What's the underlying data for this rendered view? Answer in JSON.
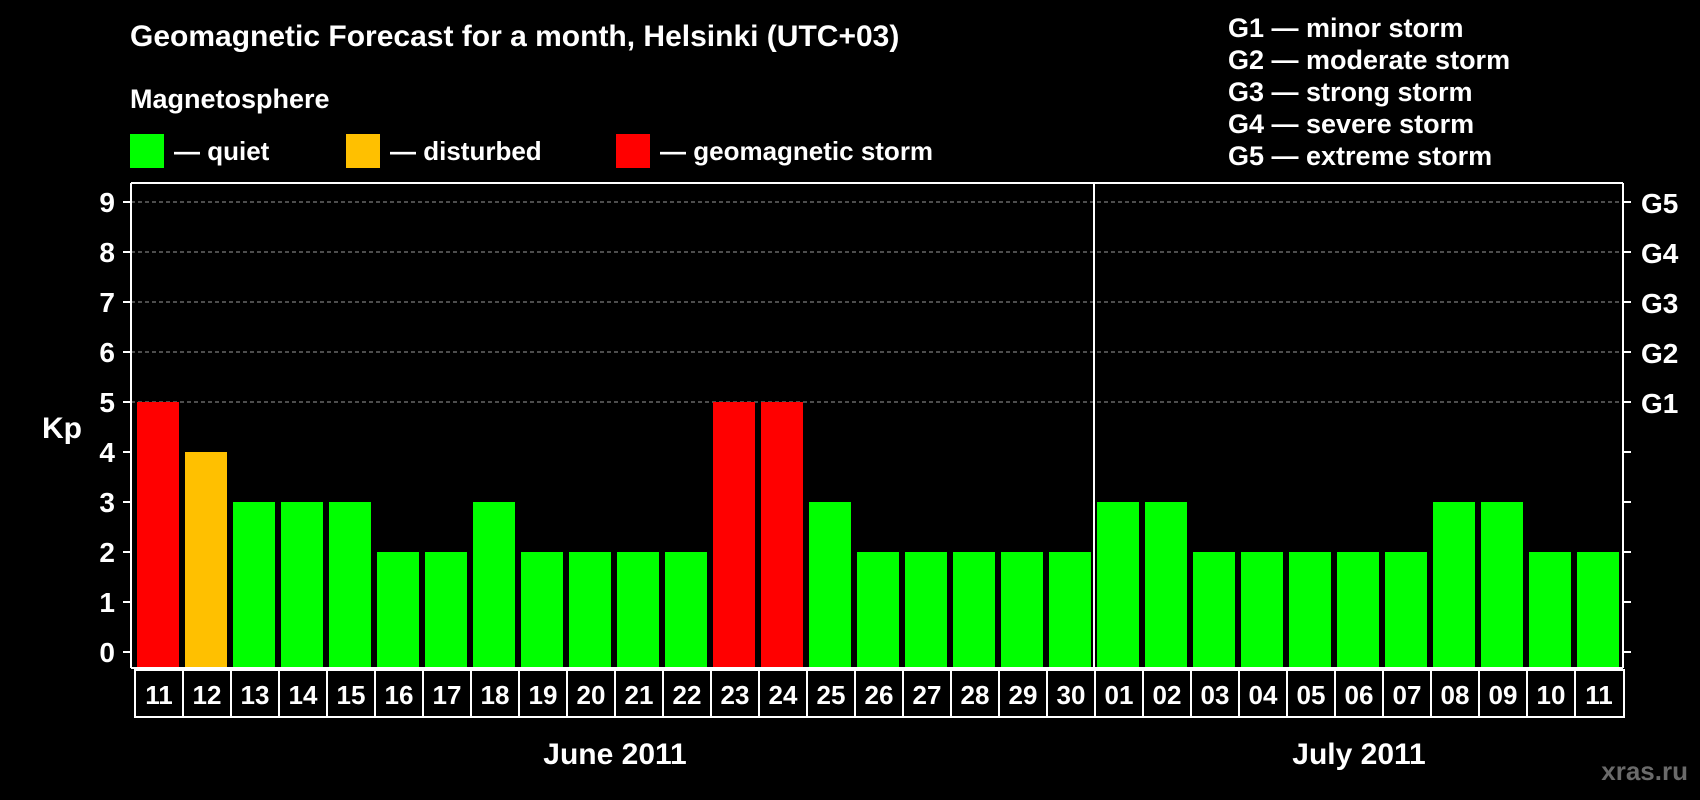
{
  "title": "Geomagnetic Forecast for a month, Helsinki (UTC+03)",
  "subtitle": "Magnetosphere",
  "legend": [
    {
      "label": "— quiet",
      "color": "#00ff00"
    },
    {
      "label": "— disturbed",
      "color": "#ffc000"
    },
    {
      "label": "— geomagnetic storm",
      "color": "#ff0000"
    }
  ],
  "g_scale_legend": [
    "G1 — minor storm",
    "G2 — moderate storm",
    "G3 — strong storm",
    "G4 — severe storm",
    "G5 — extreme storm"
  ],
  "watermark": "xras.ru",
  "colors": {
    "quiet": "#00ff00",
    "disturbed": "#ffc000",
    "storm": "#ff0000",
    "background": "#000000",
    "axis": "#ffffff",
    "grid": "#9a9a9a"
  },
  "chart_data": {
    "type": "bar",
    "ylabel": "Kp",
    "ylim": [
      0,
      9
    ],
    "yticks": [
      "0",
      "1",
      "2",
      "3",
      "4",
      "5",
      "6",
      "7",
      "8",
      "9"
    ],
    "right_axis_labels": [
      {
        "kp": 5,
        "label": "G1"
      },
      {
        "kp": 6,
        "label": "G2"
      },
      {
        "kp": 7,
        "label": "G3"
      },
      {
        "kp": 8,
        "label": "G4"
      },
      {
        "kp": 9,
        "label": "G5"
      }
    ],
    "grid": "dashed horizontal at Kp 5–9",
    "categories": [
      "11",
      "12",
      "13",
      "14",
      "15",
      "16",
      "17",
      "18",
      "19",
      "20",
      "21",
      "22",
      "23",
      "24",
      "25",
      "26",
      "27",
      "28",
      "29",
      "30",
      "01",
      "02",
      "03",
      "04",
      "05",
      "06",
      "07",
      "08",
      "09",
      "10",
      "11"
    ],
    "values": [
      5,
      4,
      3,
      3,
      3,
      2,
      2,
      3,
      2,
      2,
      2,
      2,
      5,
      5,
      3,
      2,
      2,
      2,
      2,
      2,
      3,
      3,
      2,
      2,
      2,
      2,
      2,
      3,
      3,
      2,
      2
    ],
    "status": [
      "storm",
      "disturbed",
      "quiet",
      "quiet",
      "quiet",
      "quiet",
      "quiet",
      "quiet",
      "quiet",
      "quiet",
      "quiet",
      "quiet",
      "storm",
      "storm",
      "quiet",
      "quiet",
      "quiet",
      "quiet",
      "quiet",
      "quiet",
      "quiet",
      "quiet",
      "quiet",
      "quiet",
      "quiet",
      "quiet",
      "quiet",
      "quiet",
      "quiet",
      "quiet",
      "quiet"
    ],
    "months": [
      {
        "label": "June 2011",
        "days": 20
      },
      {
        "label": "July 2011",
        "days": 11
      }
    ]
  }
}
